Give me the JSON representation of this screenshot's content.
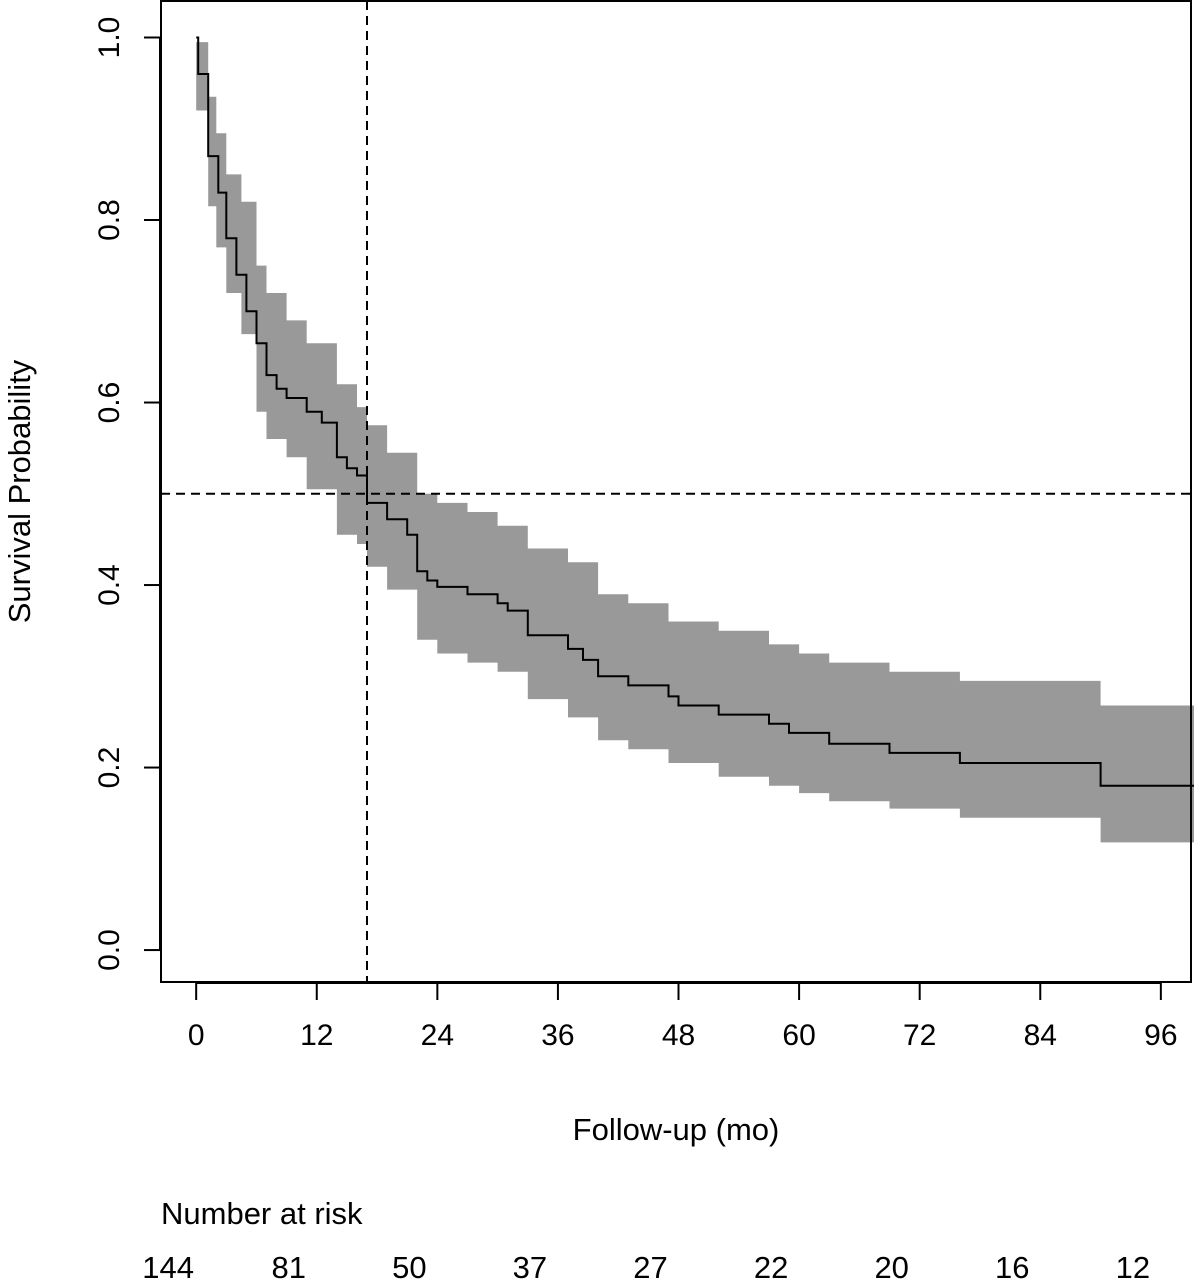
{
  "chart_data": {
    "type": "line",
    "subtype": "kaplan-meier survival curve with confidence band",
    "xlabel": "Follow-up (mo)",
    "ylabel": "Survival Probability",
    "xlim": [
      -3.5,
      99
    ],
    "ylim": [
      -0.035,
      1.04
    ],
    "x_ticks": [
      0,
      12,
      24,
      36,
      48,
      60,
      72,
      84,
      96
    ],
    "y_ticks": [
      0.0,
      0.2,
      0.4,
      0.6,
      0.8,
      1.0
    ],
    "y_tick_labels": [
      "0.0",
      "0.2",
      "0.4",
      "0.6",
      "0.8",
      "1.0"
    ],
    "grid": false,
    "reference_lines": {
      "horizontal_y": 0.5,
      "vertical_x": 17
    },
    "colors": {
      "curve": "#000000",
      "band": "#999999",
      "reference_line": "#000000"
    },
    "series": [
      {
        "step_points": [
          [
            0,
            1.0
          ],
          [
            0.2,
            0.96
          ],
          [
            1.2,
            0.87
          ],
          [
            2.2,
            0.83
          ],
          [
            3.0,
            0.78
          ],
          [
            4.0,
            0.74
          ],
          [
            5.0,
            0.7
          ],
          [
            6.0,
            0.665
          ],
          [
            7.0,
            0.63
          ],
          [
            8.0,
            0.615
          ],
          [
            9.0,
            0.605
          ],
          [
            11.0,
            0.59
          ],
          [
            12.5,
            0.578
          ],
          [
            14.0,
            0.54
          ],
          [
            15.0,
            0.528
          ],
          [
            16.0,
            0.52
          ],
          [
            17.0,
            0.49
          ],
          [
            19.0,
            0.472
          ],
          [
            21.0,
            0.455
          ],
          [
            22.0,
            0.415
          ],
          [
            23.0,
            0.405
          ],
          [
            24.0,
            0.398
          ],
          [
            27.0,
            0.39
          ],
          [
            30.0,
            0.38
          ],
          [
            31.0,
            0.372
          ],
          [
            33.0,
            0.345
          ],
          [
            37.0,
            0.33
          ],
          [
            38.5,
            0.318
          ],
          [
            40.0,
            0.3
          ],
          [
            43.0,
            0.29
          ],
          [
            47.0,
            0.278
          ],
          [
            48.0,
            0.268
          ],
          [
            52.0,
            0.258
          ],
          [
            57.0,
            0.248
          ],
          [
            59.0,
            0.238
          ],
          [
            63.0,
            0.226
          ],
          [
            69.0,
            0.216
          ],
          [
            76.0,
            0.205
          ],
          [
            90.0,
            0.18
          ],
          [
            100.0,
            0.18
          ]
        ],
        "band_steps": [
          [
            0,
            0.92,
            0.995
          ],
          [
            1.2,
            0.815,
            0.935
          ],
          [
            2.0,
            0.77,
            0.895
          ],
          [
            3.0,
            0.72,
            0.85
          ],
          [
            4.5,
            0.675,
            0.82
          ],
          [
            6.0,
            0.59,
            0.75
          ],
          [
            7.0,
            0.56,
            0.72
          ],
          [
            9.0,
            0.54,
            0.69
          ],
          [
            11.0,
            0.505,
            0.665
          ],
          [
            14.0,
            0.455,
            0.62
          ],
          [
            16.0,
            0.445,
            0.595
          ],
          [
            17.0,
            0.42,
            0.575
          ],
          [
            19.0,
            0.395,
            0.545
          ],
          [
            22.0,
            0.34,
            0.5
          ],
          [
            24.0,
            0.325,
            0.49
          ],
          [
            27.0,
            0.315,
            0.48
          ],
          [
            30.0,
            0.305,
            0.465
          ],
          [
            33.0,
            0.275,
            0.44
          ],
          [
            37.0,
            0.255,
            0.425
          ],
          [
            40.0,
            0.23,
            0.39
          ],
          [
            43.0,
            0.22,
            0.38
          ],
          [
            47.0,
            0.205,
            0.36
          ],
          [
            52.0,
            0.19,
            0.35
          ],
          [
            57.0,
            0.18,
            0.335
          ],
          [
            60.0,
            0.172,
            0.325
          ],
          [
            63.0,
            0.163,
            0.315
          ],
          [
            69.0,
            0.155,
            0.305
          ],
          [
            76.0,
            0.145,
            0.295
          ],
          [
            90.0,
            0.118,
            0.268
          ],
          [
            100.0,
            0.118,
            0.268
          ]
        ]
      }
    ],
    "number_at_risk": {
      "label": "Number at risk",
      "times": [
        0,
        12,
        24,
        36,
        48,
        60,
        72,
        84,
        96
      ],
      "values": [
        "144",
        "81",
        "50",
        "37",
        "27",
        "22",
        "20",
        "16",
        "12"
      ]
    }
  }
}
